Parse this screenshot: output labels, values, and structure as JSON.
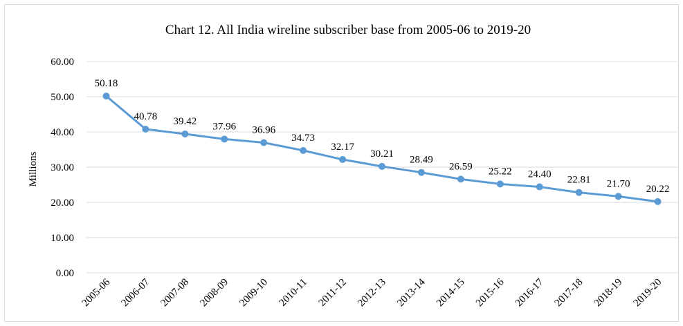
{
  "chart_data": {
    "type": "line",
    "title": "Chart 12. All India wireline subscriber base from 2005-06 to 2019-20",
    "xlabel": "",
    "ylabel": "Millions",
    "ylim": [
      0,
      60
    ],
    "yticks": [
      "0.00",
      "10.00",
      "20.00",
      "30.00",
      "40.00",
      "50.00",
      "60.00"
    ],
    "grid": true,
    "legend": "none",
    "categories": [
      "2005-06",
      "2006-07",
      "2007-08",
      "2008-09",
      "2009-10",
      "2010-11",
      "2011-12",
      "2012-13",
      "2013-14",
      "2014-15",
      "2015-16",
      "2016-17",
      "2017-18",
      "2018-19",
      "2019-20"
    ],
    "series": [
      {
        "values": [
          50.18,
          40.78,
          39.42,
          37.96,
          36.96,
          34.73,
          32.17,
          30.21,
          28.49,
          26.59,
          25.22,
          24.4,
          22.81,
          21.7,
          20.22
        ],
        "labels": [
          "50.18",
          "40.78",
          "39.42",
          "37.96",
          "36.96",
          "34.73",
          "32.17",
          "30.21",
          "28.49",
          "26.59",
          "25.22",
          "24.40",
          "22.81",
          "21.70",
          "20.22"
        ],
        "color": "#5b9bd5"
      }
    ]
  }
}
